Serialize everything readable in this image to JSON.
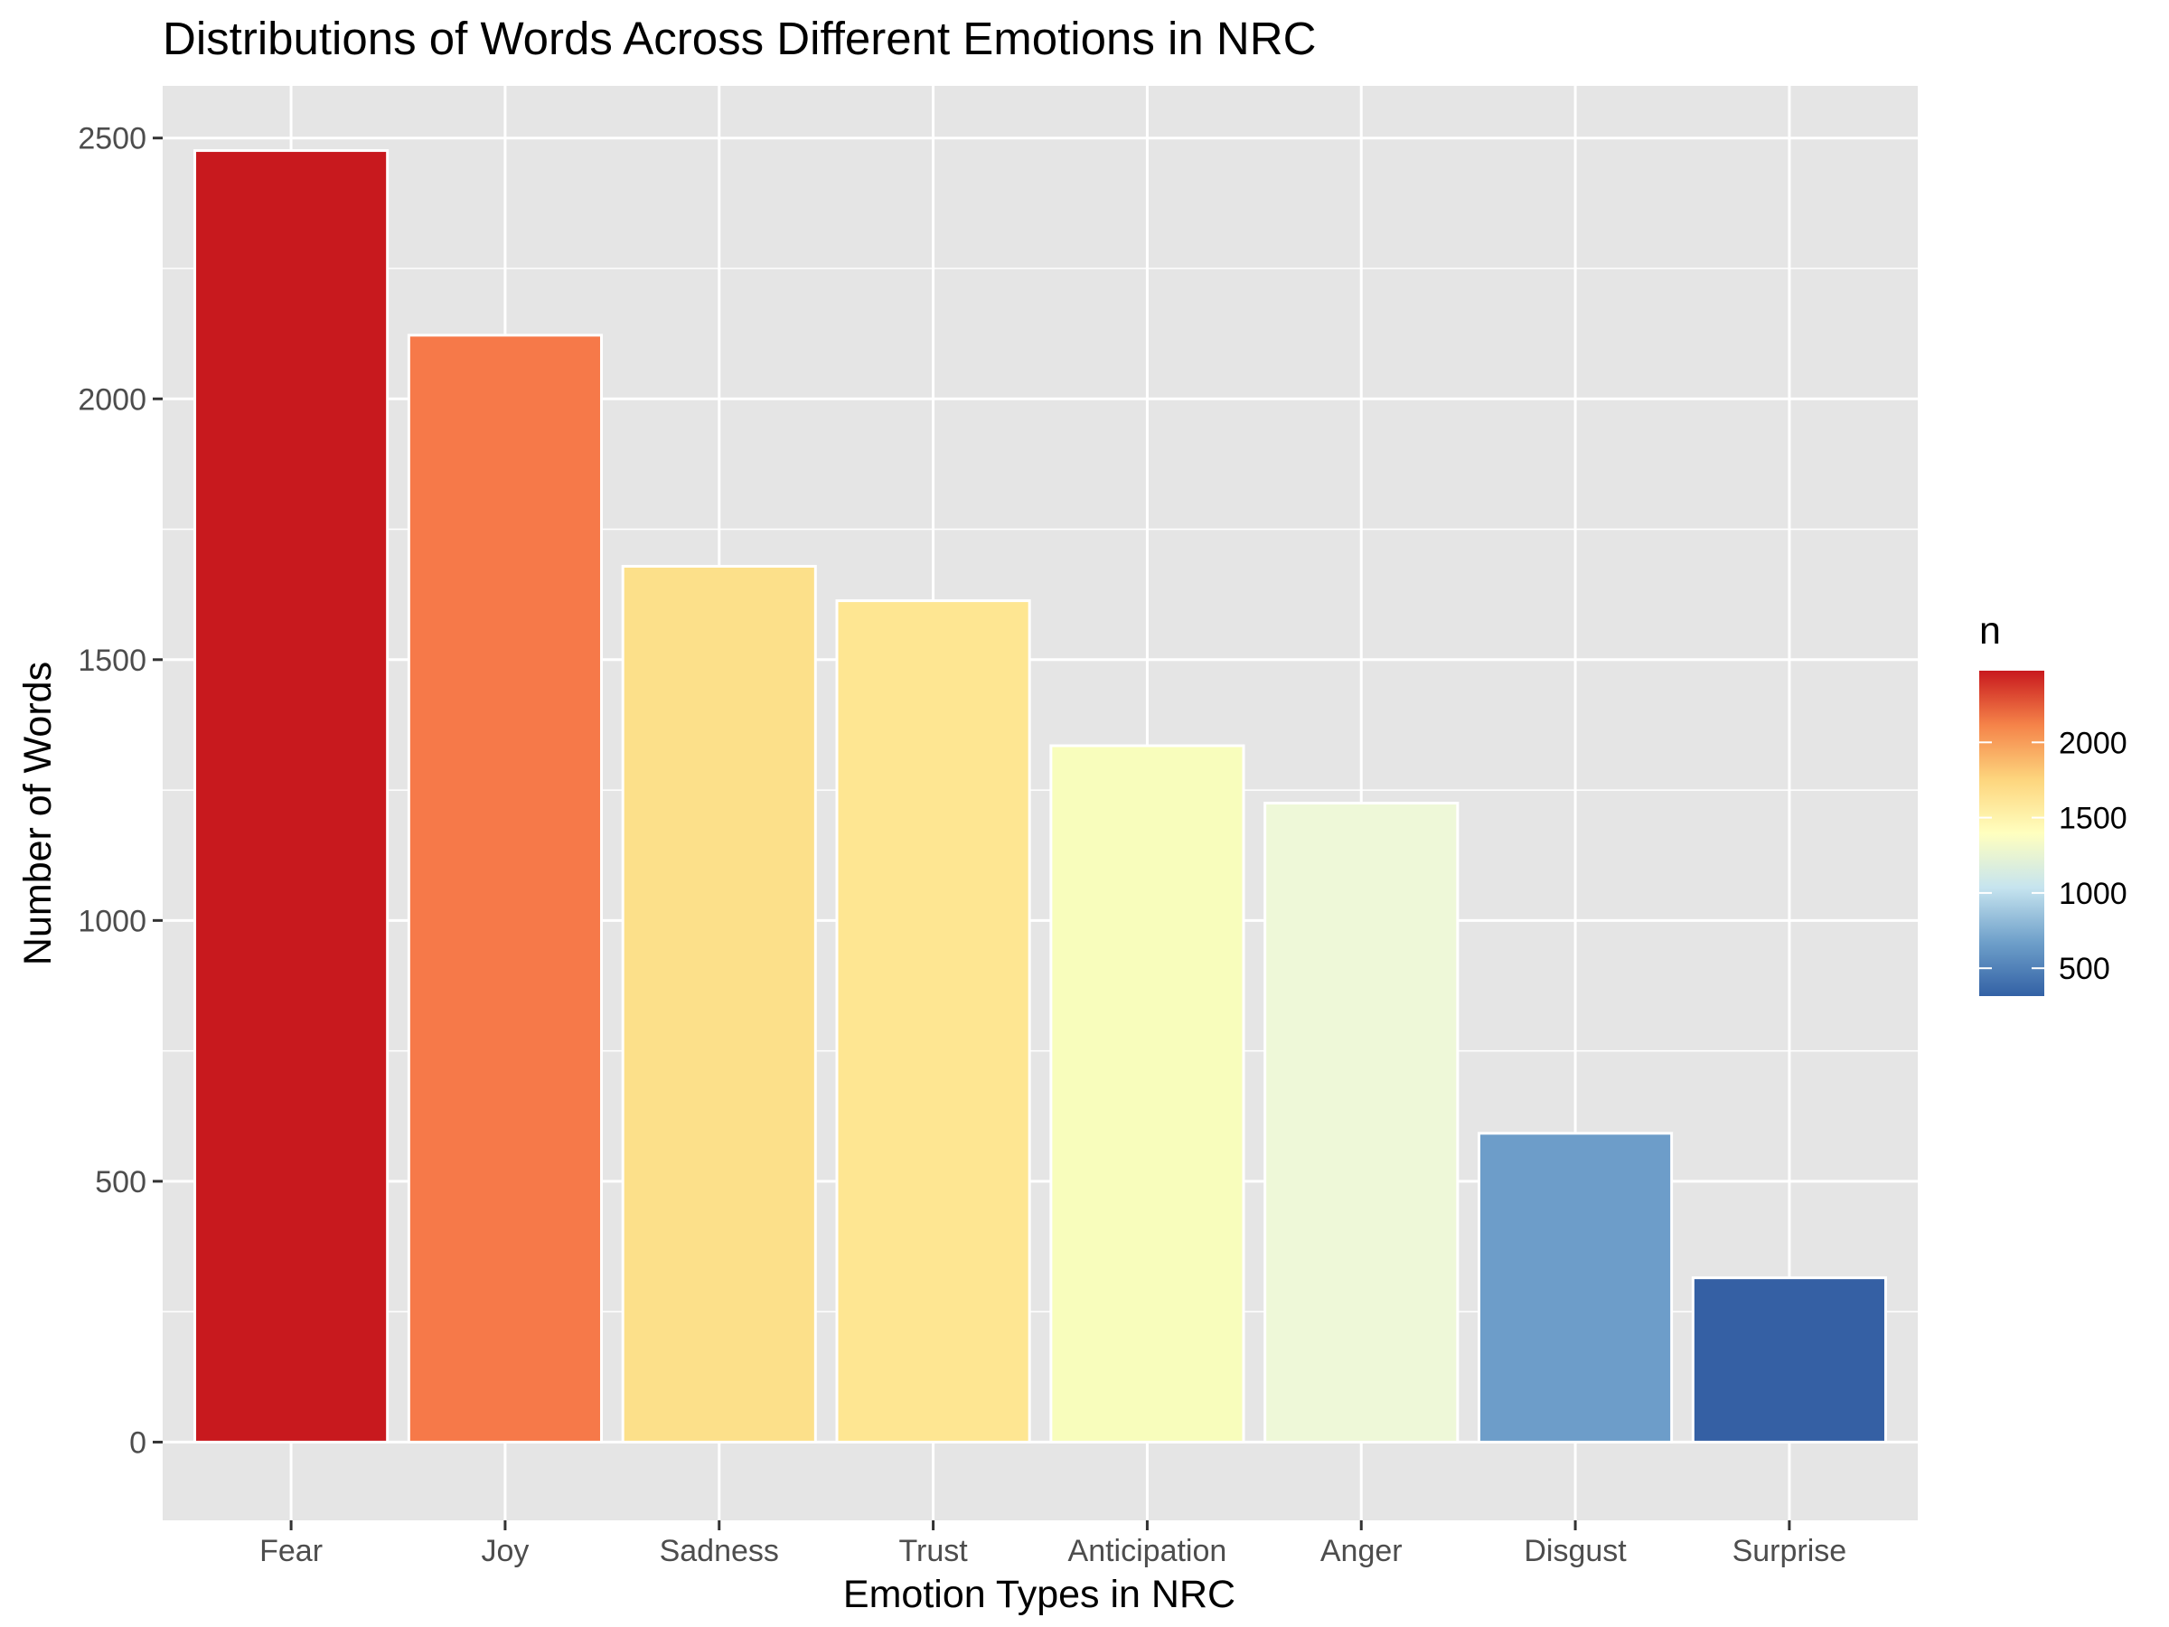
{
  "chart_data": {
    "type": "bar",
    "title": "Distributions of Words Across Different Emotions in NRC",
    "xlabel": "Emotion Types in NRC",
    "ylabel": "Number of Words",
    "categories": [
      "Fear",
      "Joy",
      "Sadness",
      "Trust",
      "Anticipation",
      "Anger",
      "Disgust",
      "Surprise"
    ],
    "values": [
      2476,
      2122,
      1679,
      1613,
      1335,
      1225,
      592,
      315
    ],
    "ylim": [
      -150,
      2600
    ],
    "yticks": [
      0,
      500,
      1000,
      1500,
      2000,
      2500
    ],
    "grid": true,
    "legend": {
      "title": "n",
      "position": "right",
      "range": [
        315,
        2476
      ],
      "ticks": [
        500,
        1000,
        1500,
        2000
      ],
      "colors": [
        "#3361a5",
        "#6fa0ca",
        "#c6e4ef",
        "#ffffbf",
        "#fdd57d",
        "#f58349",
        "#c8191e"
      ]
    },
    "bar_colors": [
      "#c8191e",
      "#f67949",
      "#fce08a",
      "#fee692",
      "#f8fdbc",
      "#eef8d8",
      "#6d9dc9",
      "#3560a4"
    ],
    "panel_background": "#e5e5e5",
    "grid_color": "#ffffff"
  }
}
